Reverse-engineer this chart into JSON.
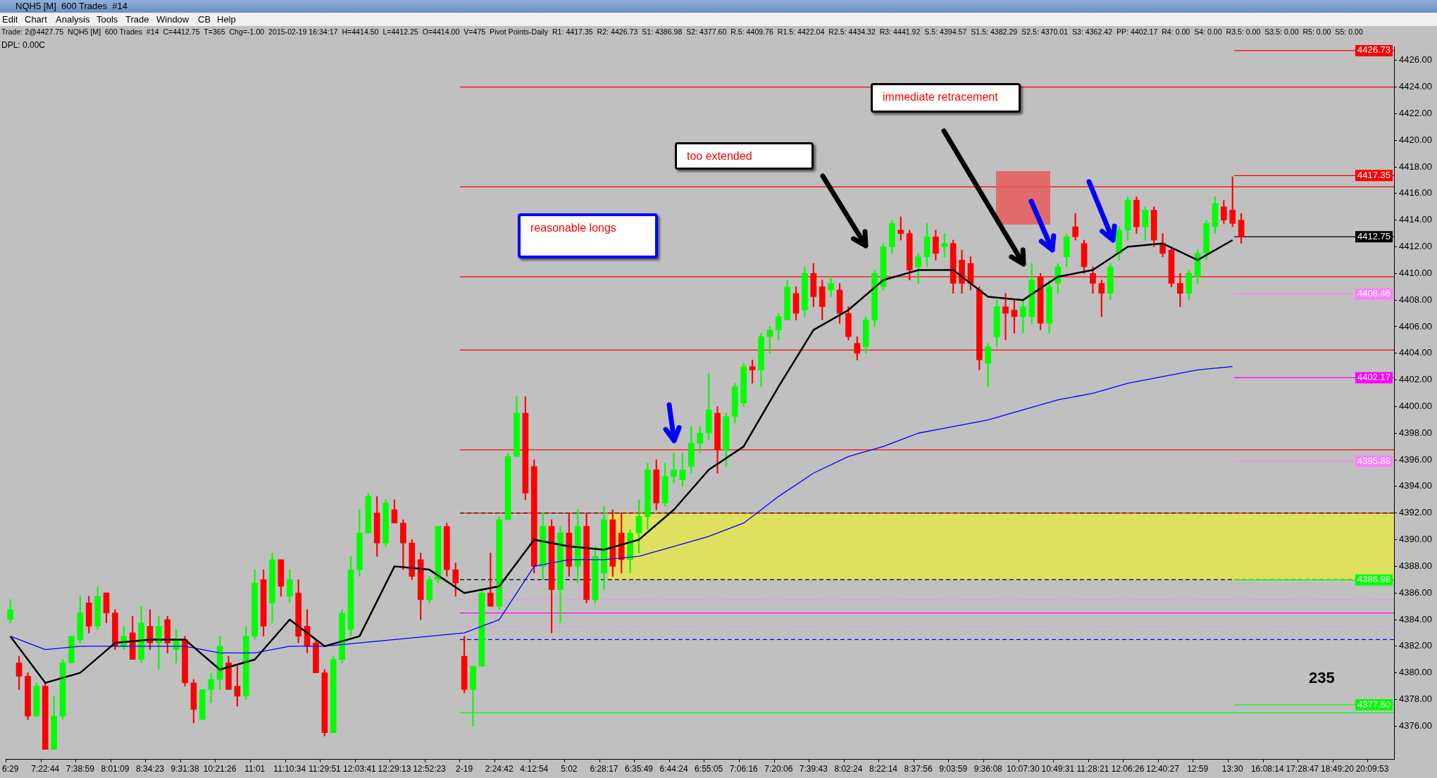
{
  "chart_data": {
    "type": "candlestick",
    "title": "NQH5 [M]  600 Trades  #14",
    "subtitle": "Trade: 2@4427.75  NQH5 [M]  600 Trades  #14  C=4412.75  T=365  Chg=-1.00  2015-02-19 16:34:17  H=4414.50  L=4412.25  O=4414.00  V=475  Pivot Points-Daily  R1: 4417.35  R2: 4426.73  S1: 4386.98  S2: 4377.60  R.5: 4409.76  R1.5: 4422.04  R2.5: 4434.32  R3: 4441.92  S.5: 4394.57  S1.5: 4382.29  S2.5: 4370.01  S3: 4362.42  PP: 4402.17  R4: 0.00  S4: 0.00  R3.5: 0.00  S3.5: 0.00  R5: 0.00  S5: 0.00",
    "categories": [
      "6:29",
      null,
      null,
      null,
      "7:22:44",
      null,
      null,
      null,
      "7:38:59",
      null,
      null,
      null,
      "8:01:09",
      null,
      null,
      null,
      "8:34:23",
      null,
      null,
      null,
      "9:31:38",
      null,
      null,
      null,
      "10:21:26",
      null,
      null,
      null,
      "11:01",
      null,
      null,
      null,
      "11:10:34",
      null,
      null,
      null,
      "11:29:51",
      null,
      null,
      null,
      "12:03:41",
      null,
      null,
      null,
      "12:29:13",
      null,
      null,
      null,
      "12:52:23",
      null,
      null,
      null,
      "2-19",
      null,
      null,
      null,
      "2:24:42",
      null,
      null,
      null,
      "4:12:54",
      null,
      null,
      null,
      "5:02",
      null,
      null,
      null,
      "6:28:17",
      null,
      null,
      null,
      "6:35:49",
      null,
      null,
      null,
      "6:44:24",
      null,
      null,
      null,
      "6:55:05",
      null,
      null,
      null,
      "7:06:16",
      null,
      null,
      null,
      "7:20:06",
      null,
      null,
      null,
      "7:39:43",
      null,
      null,
      null,
      "8:02:24",
      null,
      null,
      null,
      "8:22:14",
      null,
      null,
      null,
      "8:37:56",
      null,
      null,
      null,
      "9:03:59",
      null,
      null,
      null,
      "9:36:08",
      null,
      null,
      null,
      "10:07:30",
      null,
      null,
      null,
      "10:49:31",
      null,
      null,
      null,
      "11:28:21",
      null,
      null,
      null,
      "12:06:26",
      null,
      null,
      null,
      "12:40:27",
      null,
      null,
      null,
      "12:59",
      null,
      null,
      null,
      "13:30",
      null,
      null,
      null,
      "16:08:14",
      null,
      null,
      null,
      "17:28:47",
      null,
      null,
      null,
      "18:49:20",
      null,
      null,
      null,
      "20:09:53",
      null,
      null
    ],
    "ohlc": [
      [
        4384,
        4385.5,
        4383.75,
        4384.75
      ],
      [
        4380.75,
        4381.25,
        4378.75,
        4379.75
      ],
      [
        4379.75,
        4380,
        4376.5,
        4376.75
      ],
      [
        4376.75,
        4379.25,
        4376.75,
        4379
      ],
      [
        4379,
        4379.25,
        4374.25,
        4374.25
      ],
      [
        4374.25,
        4378.25,
        4374.25,
        4376.75
      ],
      [
        4376.75,
        4381,
        4376.5,
        4380.75
      ],
      [
        4380.75,
        4382.75,
        4380.75,
        4382.75
      ],
      [
        4382.5,
        4385.75,
        4382.25,
        4384.5
      ],
      [
        4385.25,
        4385.75,
        4383,
        4383.5
      ],
      [
        4383.5,
        4386.5,
        4383.25,
        4385.75
      ],
      [
        4386,
        4386,
        4383.75,
        4384.5
      ],
      [
        4384.5,
        4384.75,
        4381.75,
        4382
      ],
      [
        4382,
        4383.5,
        4381.75,
        4382.75
      ],
      [
        4383,
        4384.25,
        4381,
        4381
      ],
      [
        4381,
        4385,
        4380.75,
        4383.75
      ],
      [
        4383.5,
        4384.75,
        4381.75,
        4382.25
      ],
      [
        4382.25,
        4384.25,
        4380.25,
        4383.5
      ],
      [
        4384,
        4384.25,
        4381.5,
        4382.25
      ],
      [
        4381.75,
        4383.25,
        4380.75,
        4382.5
      ],
      [
        4382.5,
        4382.75,
        4379,
        4379.25
      ],
      [
        4379.25,
        4379.5,
        4376.25,
        4377.25
      ],
      [
        4376.5,
        4378.75,
        4376.5,
        4378.75
      ],
      [
        4378.75,
        4380,
        4377.75,
        4379.5
      ],
      [
        4379.5,
        4382.75,
        4378.75,
        4382
      ],
      [
        4380.75,
        4381.25,
        4378.75,
        4378.75
      ],
      [
        4379,
        4380.5,
        4377.5,
        4378.25
      ],
      [
        4378.25,
        4383.5,
        4378,
        4382.75
      ],
      [
        4382.75,
        4387.75,
        4382.5,
        4386.75
      ],
      [
        4387,
        4387.75,
        4382.75,
        4383.5
      ],
      [
        4385.25,
        4389,
        4383.75,
        4388.5
      ],
      [
        4388.5,
        4388.5,
        4385.75,
        4386.5
      ],
      [
        4385.75,
        4387.75,
        4385.25,
        4387
      ],
      [
        4386,
        4387,
        4382.25,
        4382.75
      ],
      [
        4383.5,
        4384.75,
        4381.5,
        4382
      ],
      [
        4382.25,
        4382.5,
        4380,
        4380
      ],
      [
        4380,
        4380.25,
        4375.25,
        4375.5
      ],
      [
        4375.5,
        4381.25,
        4375.5,
        4381
      ],
      [
        4381,
        4384.75,
        4380.75,
        4384.5
      ],
      [
        4383.25,
        4388.75,
        4382.75,
        4387.75
      ],
      [
        4387.75,
        4392.25,
        4387.25,
        4390.5
      ],
      [
        4390.5,
        4393.5,
        4390.5,
        4393.25
      ],
      [
        4392,
        4393.25,
        4388.75,
        4389.75
      ],
      [
        4389.75,
        4393,
        4389.5,
        4392.75
      ],
      [
        4392.25,
        4393,
        4391.25,
        4391.25
      ],
      [
        4391.25,
        4391.5,
        4387.75,
        4389.75
      ],
      [
        4389.75,
        4390,
        4387,
        4387.25
      ],
      [
        4388.5,
        4389,
        4384,
        4385.5
      ],
      [
        4385.5,
        4387.25,
        4385.25,
        4387
      ],
      [
        4387,
        4391,
        4386.75,
        4391
      ],
      [
        4391,
        4391.25,
        4387.25,
        4387.75
      ],
      [
        4387.75,
        4388.25,
        4385.75,
        4386.75
      ],
      [
        4381.25,
        4382.75,
        4378.5,
        4378.75
      ],
      [
        4378.75,
        4380.5,
        4376,
        4380.5
      ],
      [
        4380.5,
        4386.25,
        4380.5,
        4386
      ],
      [
        4386,
        4389,
        4385,
        4385
      ],
      [
        4385,
        4391.75,
        4384.75,
        4391.5
      ],
      [
        4391.5,
        4396.5,
        4391.5,
        4396.25
      ],
      [
        4396.25,
        4400.75,
        4396.25,
        4399.5
      ],
      [
        4399.5,
        4400.75,
        4393,
        4393.5
      ],
      [
        4395.5,
        4396,
        4387.5,
        4388
      ],
      [
        4388,
        4392,
        4387,
        4391
      ],
      [
        4391,
        4391.5,
        4383,
        4386.25
      ],
      [
        4386.25,
        4391,
        4383.75,
        4390.5
      ],
      [
        4390.5,
        4392,
        4387.25,
        4388
      ],
      [
        4388,
        4392.25,
        4386.75,
        4391
      ],
      [
        4391,
        4392,
        4385.25,
        4385.5
      ],
      [
        4385.5,
        4389.5,
        4385.25,
        4388.75
      ],
      [
        4387.5,
        4392.5,
        4386.25,
        4391.5
      ],
      [
        4391.5,
        4392.25,
        4387.25,
        4388
      ],
      [
        4390.5,
        4392,
        4387.5,
        4388.5
      ],
      [
        4388.5,
        4390.75,
        4387.5,
        4390.5
      ],
      [
        4390.5,
        4393,
        4389,
        4391.75
      ],
      [
        4391.75,
        4395.75,
        4390.75,
        4395.25
      ],
      [
        4395.25,
        4396,
        4392.25,
        4392.75
      ],
      [
        4392.75,
        4395.75,
        4392.5,
        4394.75
      ],
      [
        4394.75,
        4396.5,
        4394.25,
        4395.25
      ],
      [
        4394.5,
        4396.5,
        4394,
        4395.25
      ],
      [
        4395.5,
        4398.5,
        4395,
        4397.25
      ],
      [
        4397.25,
        4398.5,
        4396.5,
        4398
      ],
      [
        4398,
        4402.5,
        4397.5,
        4399.75
      ],
      [
        4399.5,
        4400,
        4395,
        4396.75
      ],
      [
        4396.75,
        4399.5,
        4395.5,
        4399.25
      ],
      [
        4399.25,
        4401.75,
        4398.75,
        4401.5
      ],
      [
        4400.25,
        4403.25,
        4400,
        4403
      ],
      [
        4403,
        4403.5,
        4401.75,
        4402.75
      ],
      [
        4402.75,
        4405.5,
        4401.5,
        4405.25
      ],
      [
        4405.25,
        4406,
        4404,
        4405.75
      ],
      [
        4405.75,
        4407,
        4405,
        4406.75
      ],
      [
        4406.5,
        4409.5,
        4406.5,
        4409
      ],
      [
        4408.5,
        4409,
        4406.5,
        4407
      ],
      [
        4407.25,
        4410.5,
        4406.75,
        4410
      ],
      [
        4410,
        4410.75,
        4407.5,
        4408.25
      ],
      [
        4409,
        4409.5,
        4406.5,
        4407.5
      ],
      [
        4408.75,
        4409.75,
        4408.25,
        4409.25
      ],
      [
        4408.75,
        4409.25,
        4406.25,
        4407
      ],
      [
        4407,
        4407.5,
        4405,
        4405.25
      ],
      [
        4404.75,
        4405.25,
        4403.5,
        4404
      ],
      [
        4404.5,
        4406.75,
        4404,
        4406.5
      ],
      [
        4406.5,
        4410.25,
        4406,
        4410
      ],
      [
        4409,
        4412.25,
        4408.75,
        4412
      ],
      [
        4412,
        4414,
        4411.5,
        4413.75
      ],
      [
        4413.25,
        4414.25,
        4412.5,
        4413
      ],
      [
        4413,
        4413.25,
        4409.5,
        4410.25
      ],
      [
        4410.5,
        4411.5,
        4409.25,
        4411.25
      ],
      [
        4411.25,
        4413.75,
        4410.5,
        4412.75
      ],
      [
        4412.75,
        4413.25,
        4411,
        4411.5
      ],
      [
        4412,
        4413,
        4411.25,
        4412.25
      ],
      [
        4412.25,
        4412.5,
        4408.5,
        4409.25
      ],
      [
        4411,
        4411.75,
        4408.5,
        4409.25
      ],
      [
        4410.75,
        4411.25,
        4408.75,
        4409.25
      ],
      [
        4408.75,
        4409,
        4402.75,
        4403.5
      ],
      [
        4403.25,
        4404.75,
        4401.5,
        4404.5
      ],
      [
        4405.25,
        4408,
        4404.5,
        4407.5
      ],
      [
        4407.5,
        4408.5,
        4405,
        4407
      ],
      [
        4407.25,
        4408,
        4405.5,
        4406.75
      ],
      [
        4406.75,
        4408,
        4405.5,
        4407.5
      ],
      [
        4406.75,
        4410.75,
        4406.25,
        4409.5
      ],
      [
        4409.75,
        4410,
        4405.75,
        4406.25
      ],
      [
        4406.25,
        4409.5,
        4405.5,
        4409
      ],
      [
        4409.25,
        4410.75,
        4408.5,
        4410.5
      ],
      [
        4411.25,
        4413,
        4410.5,
        4412.75
      ],
      [
        4413.5,
        4414.5,
        4412.5,
        4412.75
      ],
      [
        4412.25,
        4412.5,
        4410,
        4410.5
      ],
      [
        4410,
        4410.5,
        4408.5,
        4409.25
      ],
      [
        4409.25,
        4409.5,
        4406.75,
        4408.5
      ],
      [
        4408.5,
        4410.75,
        4408,
        4410.5
      ],
      [
        4411.5,
        4413.5,
        4411,
        4413.25
      ],
      [
        4413.25,
        4415.75,
        4412.5,
        4415.5
      ],
      [
        4415.5,
        4415.75,
        4413,
        4413.5
      ],
      [
        4413.5,
        4415,
        4412.5,
        4414.75
      ],
      [
        4414.75,
        4415,
        4412,
        4412.5
      ],
      [
        4412.25,
        4413,
        4411.25,
        4411.5
      ],
      [
        4411.75,
        4412,
        4409,
        4409.25
      ],
      [
        4409.25,
        4410,
        4407.5,
        4408.5
      ],
      [
        4408.5,
        4410.25,
        4408,
        4410
      ],
      [
        4409.75,
        4411.75,
        4409.25,
        4411.5
      ],
      [
        4411.5,
        4414,
        4411,
        4413.75
      ],
      [
        4413.5,
        4415.75,
        4413,
        4415.25
      ],
      [
        4415,
        4415.5,
        4413.75,
        4414
      ],
      [
        4414.75,
        4417.25,
        4413.5,
        4413.75
      ],
      [
        4414,
        4414.5,
        4412.25,
        4412.75
      ],
      null,
      null,
      null,
      null,
      null,
      null,
      null,
      null,
      null,
      null,
      null,
      null,
      null,
      null,
      null,
      null,
      null
    ],
    "series": [
      {
        "type": "line",
        "color": "#000000",
        "values": [
          4382.75,
          null,
          null,
          null,
          4379.25,
          null,
          null,
          null,
          4380,
          null,
          null,
          null,
          4382.25,
          null,
          null,
          null,
          4382.5,
          null,
          null,
          null,
          4382.5,
          null,
          null,
          null,
          4380.25,
          null,
          null,
          null,
          4381,
          null,
          null,
          null,
          4384,
          null,
          null,
          null,
          4382,
          null,
          null,
          null,
          4382.75,
          null,
          null,
          null,
          4388,
          null,
          null,
          null,
          4387.75,
          null,
          null,
          null,
          4386,
          null,
          null,
          null,
          4386.5,
          null,
          null,
          null,
          4390,
          null,
          null,
          null,
          4389.5,
          null,
          null,
          null,
          4389.25,
          null,
          null,
          null,
          4390,
          null,
          null,
          null,
          4392.25,
          null,
          null,
          null,
          4395.25,
          null,
          null,
          null,
          4397,
          null,
          null,
          null,
          4401.5,
          null,
          null,
          null,
          4405.75,
          null,
          null,
          null,
          4407.25,
          null,
          null,
          null,
          4409.5,
          null,
          null,
          null,
          4410.25,
          null,
          null,
          null,
          4410.25,
          null,
          null,
          null,
          4408.25,
          null,
          null,
          null,
          4408,
          null,
          null,
          null,
          4409.75,
          null,
          null,
          null,
          4410.25,
          null,
          null,
          null,
          4412,
          null,
          null,
          null,
          4412.25,
          null,
          null,
          null,
          4411,
          null,
          null,
          null,
          4412.5,
          null,
          null,
          null,
          null,
          null,
          null,
          null,
          null,
          null,
          null,
          null,
          null,
          null,
          null,
          null,
          null,
          null,
          null
        ]
      },
      {
        "type": "line",
        "color": "#0000ff",
        "values": [
          4382.75,
          null,
          null,
          null,
          4381.75,
          null,
          null,
          null,
          4382,
          null,
          null,
          null,
          4382,
          null,
          null,
          null,
          4382,
          null,
          null,
          null,
          4382,
          null,
          null,
          null,
          4381.5,
          null,
          null,
          null,
          4381.5,
          null,
          null,
          null,
          4382,
          null,
          null,
          null,
          4382,
          null,
          null,
          null,
          4382.25,
          null,
          null,
          null,
          4382.5,
          null,
          null,
          null,
          4382.75,
          null,
          null,
          null,
          4383,
          null,
          null,
          null,
          4384,
          null,
          null,
          null,
          4388,
          null,
          null,
          null,
          4388.5,
          null,
          null,
          null,
          4388.5,
          null,
          null,
          null,
          4388.75,
          null,
          null,
          null,
          4389.5,
          null,
          null,
          null,
          4390.25,
          null,
          null,
          null,
          4391.25,
          null,
          null,
          null,
          4393.25,
          null,
          null,
          null,
          4395,
          null,
          null,
          null,
          4396.25,
          null,
          null,
          null,
          4397,
          null,
          null,
          null,
          4398,
          null,
          null,
          null,
          4398.5,
          null,
          null,
          null,
          4399,
          null,
          null,
          null,
          4399.75,
          null,
          null,
          null,
          4400.5,
          null,
          null,
          null,
          4401,
          null,
          null,
          null,
          4401.75,
          null,
          null,
          null,
          4402.25,
          null,
          null,
          null,
          4402.75,
          null,
          null,
          null,
          4403,
          null,
          null,
          null,
          null,
          null,
          null,
          null,
          null,
          null,
          null,
          null,
          null,
          null,
          null,
          null,
          null,
          null,
          null
        ]
      }
    ],
    "ylim": [
      4373.5,
      4427
    ],
    "yticks": [
      {
        "value": 4376,
        "label": "4376.00"
      },
      {
        "value": 4378,
        "label": "4378.00"
      },
      {
        "value": 4380,
        "label": "4380.00"
      },
      {
        "value": 4382,
        "label": "4382.00"
      },
      {
        "value": 4384,
        "label": "4384.00"
      },
      {
        "value": 4386,
        "label": "4386.00"
      },
      {
        "value": 4388,
        "label": "4388.00"
      },
      {
        "value": 4390,
        "label": "4390.00"
      },
      {
        "value": 4392,
        "label": "4392.00"
      },
      {
        "value": 4394,
        "label": "4394.00"
      },
      {
        "value": 4396,
        "label": "4396.00"
      },
      {
        "value": 4398,
        "label": "4398.00"
      },
      {
        "value": 4400,
        "label": "4400.00"
      },
      {
        "value": 4402,
        "label": "4402.00"
      },
      {
        "value": 4404,
        "label": "4404.00"
      },
      {
        "value": 4406,
        "label": "4406.00"
      },
      {
        "value": 4408,
        "label": "4408.00"
      },
      {
        "value": 4410,
        "label": "4410.00"
      },
      {
        "value": 4412,
        "label": "4412.00"
      },
      {
        "value": 4414,
        "label": "4414.00"
      },
      {
        "value": 4416,
        "label": "4416.00"
      },
      {
        "value": 4418,
        "label": "4418.00"
      },
      {
        "value": 4420,
        "label": "4420.00"
      },
      {
        "value": 4422,
        "label": "4422.00"
      },
      {
        "value": 4424,
        "label": "4424.00"
      },
      {
        "value": 4426,
        "label": "4426.00"
      }
    ],
    "ref_lines": [
      {
        "axis": "y",
        "value": 4424,
        "color": "#ff0000"
      },
      {
        "axis": "y",
        "value": 4416.5,
        "color": "#ff0000"
      },
      {
        "axis": "y",
        "value": 4409.75,
        "color": "#ff0000"
      },
      {
        "axis": "y",
        "value": 4404.25,
        "color": "#ff0000"
      },
      {
        "axis": "y",
        "value": 4396.75,
        "color": "#ff0000"
      },
      {
        "axis": "y",
        "value": 4392,
        "color": "#ff0000"
      },
      {
        "axis": "y",
        "value": 4392,
        "color": "#000000",
        "line_style": "dashed"
      },
      {
        "axis": "y",
        "value": 4387,
        "color": "#000000",
        "line_style": "dashed"
      },
      {
        "axis": "y",
        "value": 4385.5,
        "color": "#ff80ff",
        "line_style": "dashed"
      },
      {
        "axis": "y",
        "value": 4384.5,
        "color": "#ff00ff"
      },
      {
        "axis": "y",
        "value": 4383.5,
        "color": "#ff80ff",
        "line_style": "dashed"
      },
      {
        "axis": "y",
        "value": 4382.5,
        "color": "#0000ff",
        "line_style": "dashed"
      },
      {
        "axis": "y",
        "value": 4377,
        "color": "#00ff00"
      },
      {
        "axis": "y",
        "value": 4426.73,
        "label": "4426.73",
        "color": "#ff0000"
      },
      {
        "axis": "y",
        "value": 4417.35,
        "label": "4417.35",
        "color": "#ff0000"
      },
      {
        "axis": "y",
        "value": 4412.75,
        "label": "4412.75",
        "color": "#000000"
      },
      {
        "axis": "y",
        "value": 4408.46,
        "label": "4408.46",
        "color": "#ff80ff"
      },
      {
        "axis": "y",
        "value": 4402.17,
        "label": "4402.17",
        "color": "#ff00ff"
      },
      {
        "axis": "y",
        "value": 4395.88,
        "label": "4395.88",
        "color": "#ff80ff"
      },
      {
        "axis": "y",
        "value": 4386.98,
        "label": "4386.98",
        "color": "#00ff00"
      },
      {
        "axis": "y",
        "value": 4377.6,
        "label": "4377.60",
        "color": "#00ff00"
      }
    ],
    "bands": [
      {
        "axis": "y",
        "from": 4387,
        "to": 4392,
        "color": "#e0e060"
      }
    ],
    "annotations": [
      "Edit",
      "Chart",
      "Analysis",
      "Tools",
      "Trade",
      "Window",
      "CB",
      "Help",
      "DPL: 0.00C",
      "reasonable longs",
      "too extended",
      "immediate retracement",
      "235"
    ],
    "legend": false,
    "marker": "none"
  }
}
